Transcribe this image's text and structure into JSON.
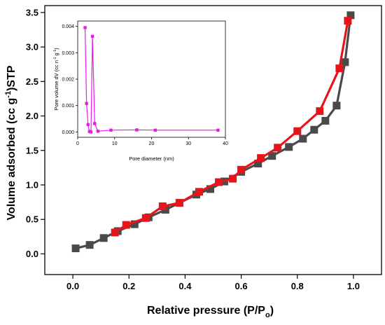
{
  "chart_data": [
    {
      "type": "line",
      "xlabel": "Relative pressure (P/P",
      "xlabel_sub": "o",
      "xlabel_end": ")",
      "ylabel": "Volume adsorbed (cc g",
      "ylabel_sup": "-1",
      "ylabel_end": ")STP",
      "xlim": [
        -0.1,
        1.1
      ],
      "ylim": [
        -0.3,
        3.6
      ],
      "x_ticks": [
        0.0,
        0.2,
        0.4,
        0.6,
        0.8,
        1.0
      ],
      "x_tick_labels": [
        "0.0",
        "0.2",
        "0.4",
        "0.6",
        "0.8",
        "1.0"
      ],
      "y_ticks": [
        0.0,
        0.5,
        1.0,
        1.5,
        2.0,
        2.5,
        3.0,
        3.5
      ],
      "y_tick_labels": [
        "0.0",
        "0.5",
        "1.0",
        "1.5",
        "2.0",
        "2.5",
        "3.0",
        "3.5"
      ],
      "grid": false,
      "series": [
        {
          "color": "#4a4a4a",
          "marker": "square",
          "x": [
            0.01,
            0.06,
            0.11,
            0.16,
            0.22,
            0.27,
            0.33,
            0.38,
            0.44,
            0.49,
            0.54,
            0.6,
            0.66,
            0.71,
            0.77,
            0.82,
            0.86,
            0.9,
            0.94,
            0.97,
            0.99
          ],
          "y": [
            0.08,
            0.13,
            0.23,
            0.33,
            0.43,
            0.53,
            0.64,
            0.74,
            0.86,
            0.94,
            1.05,
            1.19,
            1.31,
            1.42,
            1.55,
            1.67,
            1.8,
            1.93,
            2.15,
            2.78,
            3.46
          ]
        },
        {
          "color": "#e8141c",
          "marker": "square",
          "x": [
            0.98,
            0.95,
            0.88,
            0.8,
            0.73,
            0.67,
            0.6,
            0.57,
            0.52,
            0.45,
            0.38,
            0.32,
            0.26,
            0.19,
            0.15
          ],
          "y": [
            3.38,
            2.69,
            2.07,
            1.78,
            1.54,
            1.39,
            1.22,
            1.09,
            1.04,
            0.9,
            0.74,
            0.69,
            0.52,
            0.42,
            0.31
          ]
        }
      ]
    },
    {
      "type": "line",
      "xlabel": "Pore diameter (nm)",
      "ylabel": "Pore volume dV (cc n",
      "ylabel_sup1": "-1",
      "ylabel_mid": " g",
      "ylabel_sup2": "-1",
      "ylabel_end": ")",
      "xlim": [
        0,
        40
      ],
      "ylim": [
        -0.0002,
        0.0042
      ],
      "x_ticks": [
        0,
        10,
        20,
        30,
        40
      ],
      "x_tick_labels": [
        "0",
        "10",
        "20",
        "30",
        "40"
      ],
      "y_ticks": [
        0.0,
        0.001,
        0.002,
        0.003,
        0.004
      ],
      "y_tick_labels": [
        "0.000",
        "0.001",
        "0.002",
        "0.003",
        "0.004"
      ],
      "grid": false,
      "series": [
        {
          "color": "#e81ce8",
          "marker": "square",
          "x": [
            2.0,
            2.4,
            2.8,
            3.2,
            3.6,
            4.0,
            4.6,
            5.5,
            9.0,
            16.0,
            21.0,
            38.0
          ],
          "y": [
            0.00395,
            0.00108,
            0.00028,
            2e-05,
            0.0,
            0.00362,
            0.00032,
            3e-05,
            7e-05,
            8e-05,
            7e-05,
            7e-05
          ]
        }
      ]
    }
  ]
}
